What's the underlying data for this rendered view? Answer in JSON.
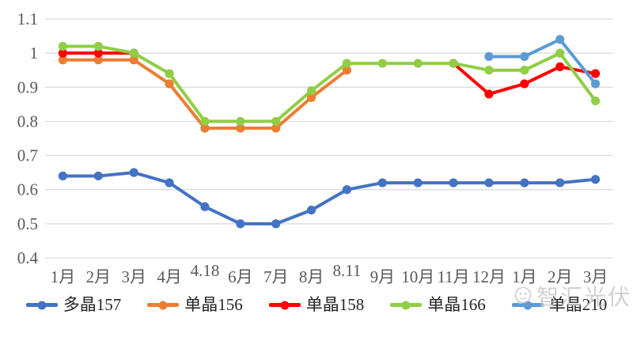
{
  "chart_data": {
    "type": "line",
    "title": "",
    "xlabel": "",
    "ylabel": "",
    "categories": [
      "1月",
      "2月",
      "3月",
      "4月",
      "4.18",
      "6月",
      "7月",
      "8月",
      "8.11",
      "9月",
      "10月",
      "11月",
      "12月",
      "1月",
      "2月",
      "3月"
    ],
    "raised_x_labels": [
      "4.18",
      "8.11"
    ],
    "series": [
      {
        "name": "多晶157",
        "color": "#4472C4",
        "values": [
          0.64,
          0.64,
          0.65,
          0.62,
          0.55,
          0.5,
          0.5,
          0.54,
          0.6,
          0.62,
          0.62,
          0.62,
          0.62,
          0.62,
          0.62,
          0.63
        ]
      },
      {
        "name": "单晶156",
        "color": "#ED7D31",
        "values": [
          0.98,
          0.98,
          0.98,
          0.91,
          0.78,
          0.78,
          0.78,
          0.87,
          0.95,
          null,
          null,
          null,
          null,
          null,
          null,
          null
        ]
      },
      {
        "name": "单晶158",
        "color": "#FF0000",
        "values": [
          1.0,
          1.0,
          1.0,
          null,
          null,
          null,
          null,
          null,
          null,
          null,
          null,
          0.97,
          0.88,
          0.91,
          0.96,
          0.94
        ]
      },
      {
        "name": "单晶166",
        "color": "#8FCE45",
        "values": [
          1.02,
          1.02,
          1.0,
          0.94,
          0.8,
          0.8,
          0.8,
          0.89,
          0.97,
          0.97,
          0.97,
          0.97,
          0.95,
          0.95,
          1.0,
          0.86
        ]
      },
      {
        "name": "单晶210",
        "color": "#5B9BD5",
        "values": [
          null,
          null,
          null,
          null,
          null,
          null,
          null,
          null,
          null,
          null,
          null,
          null,
          0.99,
          0.99,
          1.04,
          0.91
        ]
      }
    ],
    "ylim": [
      0.4,
      1.1
    ],
    "ytick_step": 0.1,
    "y_tick_labels": [
      "1.1",
      "1",
      "0.9",
      "0.8",
      "0.7",
      "0.6",
      "0.5",
      "0.4"
    ],
    "grid": "horizontal",
    "legend_position": "bottom",
    "gridline_color": "#D9D9D9",
    "tick_label_color": "#595959"
  },
  "watermark": {
    "text": "智汇光伏"
  }
}
